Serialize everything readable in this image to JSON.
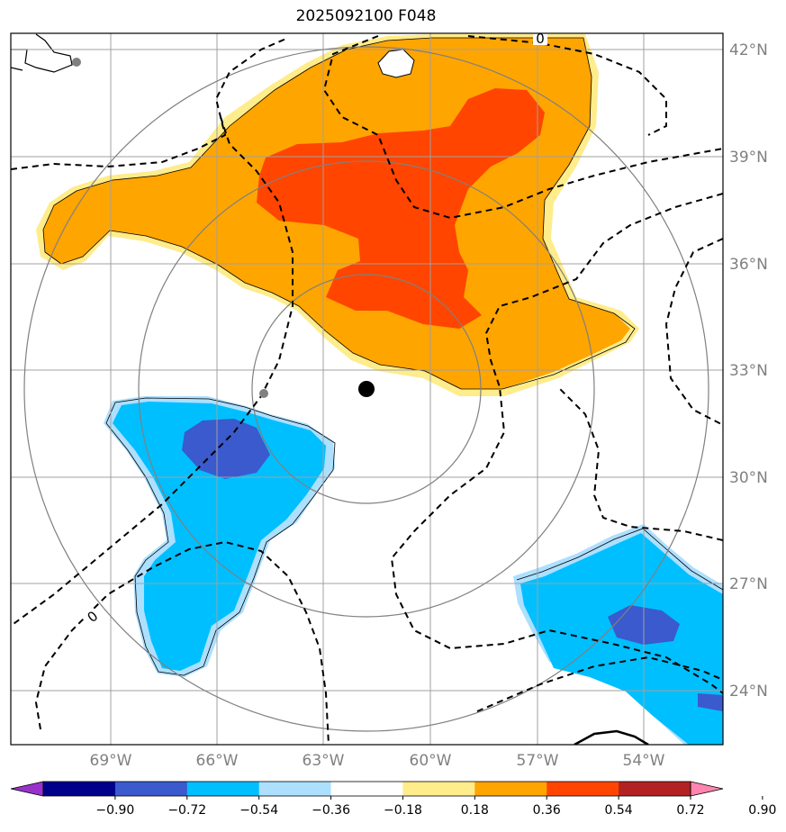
{
  "title": "2025092100 F048",
  "latitude_labels": [
    "42°N",
    "39°N",
    "36°N",
    "33°N",
    "30°N",
    "27°N",
    "24°N"
  ],
  "longitude_labels": [
    "69°W",
    "66°W",
    "63°W",
    "60°W",
    "57°W",
    "54°W"
  ],
  "colorbar": {
    "ticks": [
      "−0.90",
      "−0.72",
      "−0.54",
      "−0.36",
      "−0.18",
      "0.18",
      "0.36",
      "0.54",
      "0.72",
      "0.90"
    ],
    "colors": [
      "#9932CC",
      "#00008B",
      "#3A5ACD",
      "#00BFFF",
      "#ADDFFF",
      "#FFFFFF",
      "#FFEC8B",
      "#FFA500",
      "#FF4500",
      "#B22222",
      "#FF85B0"
    ]
  },
  "contour_labels": [
    "0",
    "0"
  ],
  "colors": {
    "pos1": "#FFEC8B",
    "pos2": "#FFA500",
    "pos3": "#FF4500",
    "neg1": "#ADDFFF",
    "neg2": "#00BFFF",
    "neg3": "#3A5ACD",
    "grid": "#A0A0A0",
    "rings": "#808080"
  }
}
